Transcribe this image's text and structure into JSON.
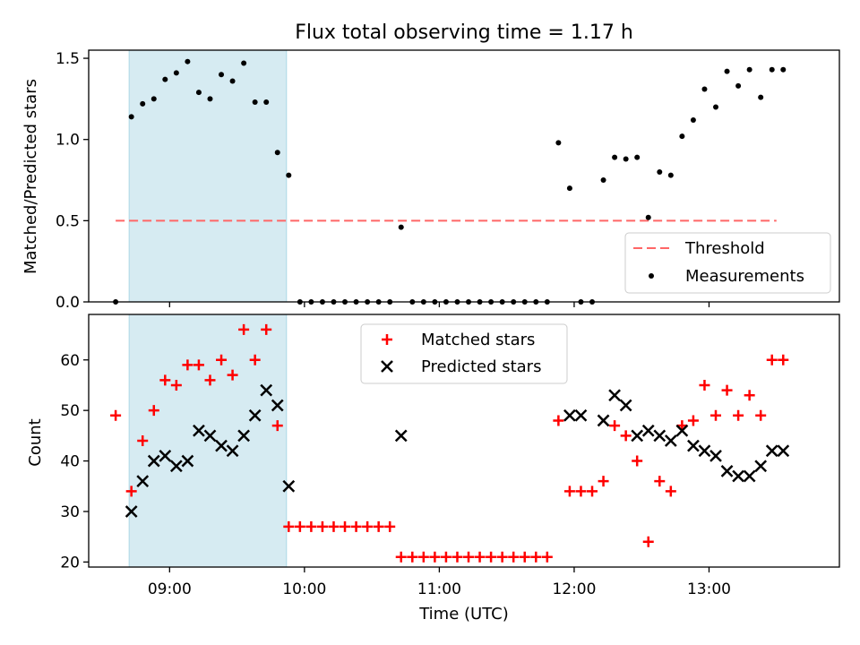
{
  "colors": {
    "band": "#add8e6",
    "threshold": "#ff6666",
    "measurement": "#000000",
    "matched": "#ff0000",
    "predicted": "#000000"
  },
  "chart_data": [
    {
      "type": "scatter",
      "title": "Flux total observing time = 1.17 h",
      "xlabel": "",
      "ylabel": "Matched/Predicted stars",
      "x_unit": "hours UTC",
      "xlim": [
        "08:24",
        "13:58"
      ],
      "ylim": [
        0,
        1.55
      ],
      "yticks": [
        0.0,
        0.5,
        1.0,
        1.5
      ],
      "ytick_labels": [
        "0.0",
        "0.5",
        "1.0",
        "1.5"
      ],
      "grid": false,
      "legend": "lower-right",
      "shaded_interval": [
        "08:42",
        "09:52"
      ],
      "threshold": {
        "name": "Threshold",
        "y": 0.5,
        "x_range": [
          "08:36",
          "13:30"
        ]
      },
      "series": [
        {
          "name": "Measurements",
          "marker": "dot",
          "x": [
            "08:36",
            "08:43",
            "08:48",
            "08:53",
            "08:58",
            "09:03",
            "09:08",
            "09:13",
            "09:18",
            "09:23",
            "09:28",
            "09:33",
            "09:38",
            "09:43",
            "09:48",
            "09:53",
            "09:58",
            "10:03",
            "10:08",
            "10:13",
            "10:18",
            "10:23",
            "10:28",
            "10:33",
            "10:38",
            "10:43",
            "10:48",
            "10:53",
            "10:58",
            "11:03",
            "11:08",
            "11:13",
            "11:18",
            "11:23",
            "11:28",
            "11:33",
            "11:38",
            "11:43",
            "11:48",
            "11:53",
            "11:58",
            "12:03",
            "12:08",
            "12:13",
            "12:18",
            "12:23",
            "12:28",
            "12:33",
            "12:38",
            "12:43",
            "12:48",
            "12:53",
            "12:58",
            "13:03",
            "13:08",
            "13:13",
            "13:18",
            "13:23",
            "13:28",
            "13:33"
          ],
          "y": [
            0.0,
            1.14,
            1.22,
            1.25,
            1.37,
            1.41,
            1.48,
            1.29,
            1.25,
            1.4,
            1.36,
            1.47,
            1.23,
            1.23,
            0.92,
            0.78,
            0.0,
            0.0,
            0.0,
            0.0,
            0.0,
            0.0,
            0.0,
            0.0,
            0.0,
            0.46,
            0.0,
            0.0,
            0.0,
            0.0,
            0.0,
            0.0,
            0.0,
            0.0,
            0.0,
            0.0,
            0.0,
            0.0,
            0.0,
            0.98,
            0.7,
            0.0,
            0.0,
            0.75,
            0.89,
            0.88,
            0.89,
            0.52,
            0.8,
            0.78,
            1.02,
            1.12,
            1.31,
            1.2,
            1.42,
            1.33,
            1.43,
            1.26,
            1.43,
            1.43
          ]
        }
      ]
    },
    {
      "type": "scatter",
      "title": "",
      "xlabel": "Time (UTC)",
      "ylabel": "Count",
      "x_unit": "hours UTC",
      "xlim": [
        "08:24",
        "13:58"
      ],
      "ylim": [
        19,
        69
      ],
      "xticks": [
        "09:00",
        "10:00",
        "11:00",
        "12:00",
        "13:00"
      ],
      "xtick_labels": [
        "09:00",
        "10:00",
        "11:00",
        "12:00",
        "13:00"
      ],
      "yticks": [
        20,
        30,
        40,
        50,
        60
      ],
      "ytick_labels": [
        "20",
        "30",
        "40",
        "50",
        "60"
      ],
      "grid": false,
      "legend": "upper-center",
      "shaded_interval": [
        "08:42",
        "09:52"
      ],
      "series": [
        {
          "name": "Matched stars",
          "marker": "plus",
          "x": [
            "08:36",
            "08:43",
            "08:48",
            "08:53",
            "08:58",
            "09:03",
            "09:08",
            "09:13",
            "09:18",
            "09:23",
            "09:28",
            "09:33",
            "09:38",
            "09:43",
            "09:48",
            "09:53",
            "09:58",
            "10:03",
            "10:08",
            "10:13",
            "10:18",
            "10:23",
            "10:28",
            "10:33",
            "10:38",
            "10:43",
            "10:48",
            "10:53",
            "10:58",
            "11:03",
            "11:08",
            "11:13",
            "11:18",
            "11:23",
            "11:28",
            "11:33",
            "11:38",
            "11:43",
            "11:48",
            "11:53",
            "11:58",
            "12:03",
            "12:08",
            "12:13",
            "12:18",
            "12:23",
            "12:28",
            "12:33",
            "12:38",
            "12:43",
            "12:48",
            "12:53",
            "12:58",
            "13:03",
            "13:08",
            "13:13",
            "13:18",
            "13:23",
            "13:28",
            "13:33"
          ],
          "y": [
            49,
            34,
            44,
            50,
            56,
            55,
            59,
            59,
            56,
            60,
            57,
            66,
            60,
            66,
            47,
            27,
            27,
            27,
            27,
            27,
            27,
            27,
            27,
            27,
            27,
            21,
            21,
            21,
            21,
            21,
            21,
            21,
            21,
            21,
            21,
            21,
            21,
            21,
            21,
            48,
            34,
            34,
            34,
            36,
            47,
            45,
            40,
            24,
            36,
            34,
            47,
            48,
            55,
            49,
            54,
            49,
            53,
            49,
            60,
            60
          ]
        },
        {
          "name": "Predicted stars",
          "marker": "x",
          "x": [
            "08:43",
            "08:48",
            "08:53",
            "08:58",
            "09:03",
            "09:08",
            "09:13",
            "09:18",
            "09:23",
            "09:28",
            "09:33",
            "09:38",
            "09:43",
            "09:48",
            "09:53",
            "10:43",
            "11:58",
            "12:03",
            "12:13",
            "12:18",
            "12:23",
            "12:28",
            "12:33",
            "12:38",
            "12:43",
            "12:48",
            "12:53",
            "12:58",
            "13:03",
            "13:08",
            "13:13",
            "13:18",
            "13:23",
            "13:28",
            "13:33"
          ],
          "y": [
            30,
            36,
            40,
            41,
            39,
            40,
            46,
            45,
            43,
            42,
            45,
            49,
            54,
            51,
            35,
            45,
            49,
            49,
            48,
            53,
            51,
            45,
            46,
            45,
            44,
            46,
            43,
            42,
            41,
            38,
            37,
            37,
            39,
            42,
            42
          ]
        }
      ]
    }
  ]
}
